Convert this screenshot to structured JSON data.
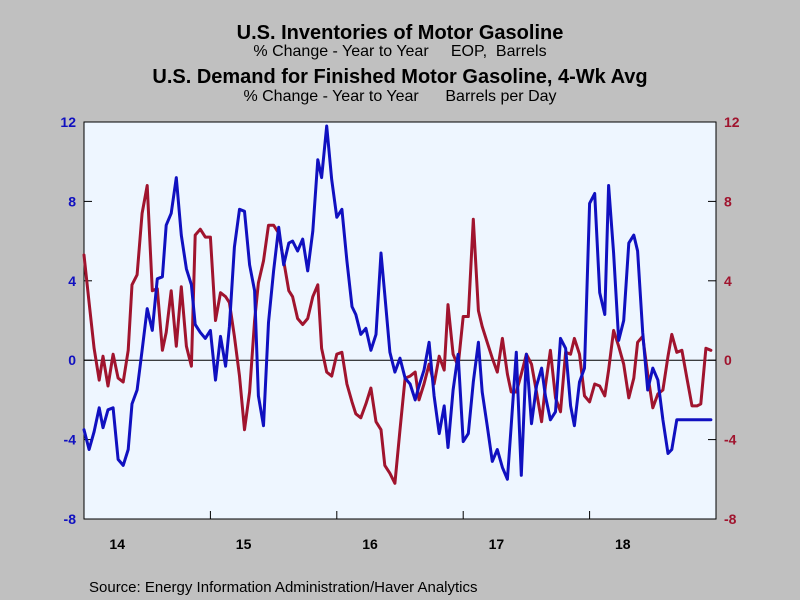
{
  "colors": {
    "inventories": "#1010c0",
    "demand": "#a0142e",
    "plot_bg": "#eef6ff",
    "page_bg": "#c0c0c0"
  },
  "titles": {
    "inventories_title": "U.S. Inventories of Motor Gasoline",
    "inventories_subtitle": "% Change - Year to Year     EOP,  Barrels",
    "demand_title": "U.S. Demand for Finished Motor Gasoline, 4-Wk Avg",
    "demand_subtitle": "% Change - Year to Year      Barrels per Day"
  },
  "source": "Source:  Energy Information Administration/Haver Analytics",
  "chart_data": {
    "type": "line",
    "x_ticks": [
      "14",
      "15",
      "16",
      "17",
      "18"
    ],
    "xlim": [
      2014.0,
      2019.0
    ],
    "ylim": [
      -8,
      12
    ],
    "y_ticks": [
      "-8",
      "-4",
      "0",
      "4",
      "8",
      "12"
    ],
    "grid": false,
    "zero_line": true,
    "series": [
      {
        "name": "U.S. Inventories of Motor Gasoline",
        "axis": "left",
        "x": [
          2014.0,
          2014.04,
          2014.08,
          2014.12,
          2014.15,
          2014.19,
          2014.23,
          2014.27,
          2014.31,
          2014.35,
          2014.38,
          2014.42,
          2014.46,
          2014.5,
          2014.54,
          2014.58,
          2014.62,
          2014.65,
          2014.69,
          2014.73,
          2014.77,
          2014.81,
          2014.85,
          2014.88,
          2014.92,
          2014.96,
          2015.0,
          2015.04,
          2015.08,
          2015.12,
          2015.15,
          2015.19,
          2015.23,
          2015.27,
          2015.31,
          2015.35,
          2015.38,
          2015.42,
          2015.46,
          2015.5,
          2015.54,
          2015.58,
          2015.62,
          2015.65,
          2015.69,
          2015.73,
          2015.77,
          2015.81,
          2015.85,
          2015.88,
          2015.92,
          2015.96,
          2016.0,
          2016.04,
          2016.08,
          2016.12,
          2016.15,
          2016.19,
          2016.23,
          2016.27,
          2016.31,
          2016.35,
          2016.38,
          2016.42,
          2016.46,
          2016.5,
          2016.54,
          2016.58,
          2016.62,
          2016.65,
          2016.69,
          2016.73,
          2016.77,
          2016.81,
          2016.85,
          2016.88,
          2016.92,
          2016.96,
          2017.0,
          2017.04,
          2017.08,
          2017.12,
          2017.15,
          2017.19,
          2017.23,
          2017.27,
          2017.31,
          2017.35,
          2017.38,
          2017.42,
          2017.46,
          2017.5,
          2017.54,
          2017.58,
          2017.62,
          2017.65,
          2017.69,
          2017.73,
          2017.77,
          2017.81,
          2017.85,
          2017.88,
          2017.92,
          2017.96,
          2018.0,
          2018.04,
          2018.08,
          2018.12,
          2018.15,
          2018.19,
          2018.23,
          2018.27,
          2018.31,
          2018.35,
          2018.38,
          2018.42,
          2018.46,
          2018.5,
          2018.54,
          2018.58,
          2018.62,
          2018.65,
          2018.69,
          2018.73,
          2018.77,
          2018.81,
          2018.85,
          2018.88,
          2018.92,
          2018.96
        ],
        "values": [
          -3.5,
          -4.5,
          -3.6,
          -2.4,
          -3.4,
          -2.5,
          -2.4,
          -5.0,
          -5.3,
          -4.5,
          -2.2,
          -1.5,
          0.5,
          2.6,
          1.5,
          4.1,
          4.2,
          6.8,
          7.4,
          9.2,
          6.3,
          4.6,
          3.8,
          1.8,
          1.4,
          1.1,
          1.5,
          -1.0,
          1.2,
          -0.3,
          1.7,
          5.7,
          7.6,
          7.5,
          4.8,
          3.5,
          -1.8,
          -3.3,
          1.9,
          4.5,
          6.7,
          4.8,
          5.9,
          6.0,
          5.5,
          6.1,
          4.5,
          6.5,
          10.1,
          9.2,
          11.8,
          9.1,
          7.2,
          7.6,
          5.0,
          2.7,
          2.3,
          1.3,
          1.6,
          0.5,
          1.3,
          5.4,
          3.3,
          0.4,
          -0.6,
          0.1,
          -0.9,
          -1.2,
          -2.0,
          -1.3,
          -0.5,
          0.9,
          -1.8,
          -3.7,
          -2.3,
          -4.4,
          -1.5,
          0.3,
          -4.1,
          -3.7,
          -1.1,
          0.9,
          -1.6,
          -3.3,
          -5.1,
          -4.5,
          -5.4,
          -6.0,
          -3.3,
          0.4,
          -5.8,
          0.3,
          -3.2,
          -1.3,
          -0.4,
          -1.8,
          -3.0,
          -2.6,
          1.1,
          0.6,
          -2.3,
          -3.3,
          -1.1,
          -0.4,
          7.9,
          8.4,
          3.4,
          2.3,
          8.8,
          5.4,
          1.0,
          2.0,
          5.9,
          6.3,
          5.5,
          1.4,
          -1.5,
          -0.4,
          -1.0,
          -3.0,
          -4.7,
          -4.5,
          -3.0,
          -3.0,
          -3.0,
          -3.0,
          -3.0,
          -3.0,
          -3.0,
          -3.0
        ]
      },
      {
        "name": "U.S. Demand for Finished Motor Gasoline, 4-Wk Avg",
        "axis": "right",
        "x": [
          2014.0,
          2014.04,
          2014.08,
          2014.12,
          2014.15,
          2014.19,
          2014.23,
          2014.27,
          2014.31,
          2014.35,
          2014.38,
          2014.42,
          2014.46,
          2014.5,
          2014.54,
          2014.58,
          2014.62,
          2014.65,
          2014.69,
          2014.73,
          2014.77,
          2014.81,
          2014.85,
          2014.88,
          2014.92,
          2014.96,
          2015.0,
          2015.04,
          2015.08,
          2015.12,
          2015.15,
          2015.19,
          2015.23,
          2015.27,
          2015.31,
          2015.35,
          2015.38,
          2015.42,
          2015.46,
          2015.5,
          2015.54,
          2015.58,
          2015.62,
          2015.65,
          2015.69,
          2015.73,
          2015.77,
          2015.81,
          2015.85,
          2015.88,
          2015.92,
          2015.96,
          2016.0,
          2016.04,
          2016.08,
          2016.12,
          2016.15,
          2016.19,
          2016.23,
          2016.27,
          2016.31,
          2016.35,
          2016.38,
          2016.42,
          2016.46,
          2016.5,
          2016.54,
          2016.58,
          2016.62,
          2016.65,
          2016.69,
          2016.73,
          2016.77,
          2016.81,
          2016.85,
          2016.88,
          2016.92,
          2016.96,
          2017.0,
          2017.04,
          2017.08,
          2017.12,
          2017.15,
          2017.19,
          2017.23,
          2017.27,
          2017.31,
          2017.35,
          2017.38,
          2017.42,
          2017.46,
          2017.5,
          2017.54,
          2017.58,
          2017.62,
          2017.65,
          2017.69,
          2017.73,
          2017.77,
          2017.81,
          2017.85,
          2017.88,
          2017.92,
          2017.96,
          2018.0,
          2018.04,
          2018.08,
          2018.12,
          2018.15,
          2018.19,
          2018.23,
          2018.27,
          2018.31,
          2018.35,
          2018.38,
          2018.42,
          2018.46,
          2018.5,
          2018.54,
          2018.58,
          2018.62,
          2018.65,
          2018.69,
          2018.73,
          2018.77,
          2018.81,
          2018.85,
          2018.88,
          2018.92,
          2018.96
        ],
        "values": [
          5.3,
          2.9,
          0.6,
          -1.0,
          0.2,
          -1.3,
          0.3,
          -0.9,
          -1.1,
          0.5,
          3.8,
          4.3,
          7.4,
          8.8,
          3.5,
          3.6,
          0.5,
          1.4,
          3.5,
          0.7,
          3.7,
          0.7,
          -0.3,
          6.3,
          6.6,
          6.2,
          6.2,
          2.0,
          3.4,
          3.2,
          2.9,
          1.2,
          -0.8,
          -3.5,
          -1.6,
          2.0,
          3.9,
          5.0,
          6.8,
          6.8,
          6.4,
          5.0,
          3.5,
          3.2,
          2.1,
          1.8,
          2.1,
          3.2,
          3.8,
          0.6,
          -0.6,
          -0.8,
          0.3,
          0.4,
          -1.2,
          -2.1,
          -2.7,
          -2.9,
          -2.2,
          -1.4,
          -3.1,
          -3.5,
          -5.3,
          -5.7,
          -6.2,
          -3.5,
          -0.9,
          -0.8,
          -0.6,
          -2.0,
          -1.2,
          -0.2,
          -1.2,
          0.2,
          -0.5,
          2.8,
          0.3,
          -0.3,
          2.2,
          2.2,
          7.1,
          2.5,
          1.7,
          0.9,
          0.1,
          -0.6,
          1.1,
          -0.7,
          -1.6,
          -1.6,
          -0.7,
          0.3,
          -0.2,
          -1.6,
          -3.1,
          -1.3,
          0.5,
          -1.9,
          -2.6,
          0.4,
          0.3,
          1.1,
          0.3,
          -1.8,
          -2.1,
          -1.2,
          -1.3,
          -1.8,
          -0.5,
          1.5,
          0.7,
          -0.2,
          -1.9,
          -0.9,
          0.9,
          1.2,
          -0.7,
          -2.4,
          -1.7,
          -1.5,
          0.2,
          1.3,
          0.4,
          0.5,
          -0.9,
          -2.3,
          -2.3,
          -2.2,
          0.6,
          0.5
        ]
      }
    ]
  }
}
